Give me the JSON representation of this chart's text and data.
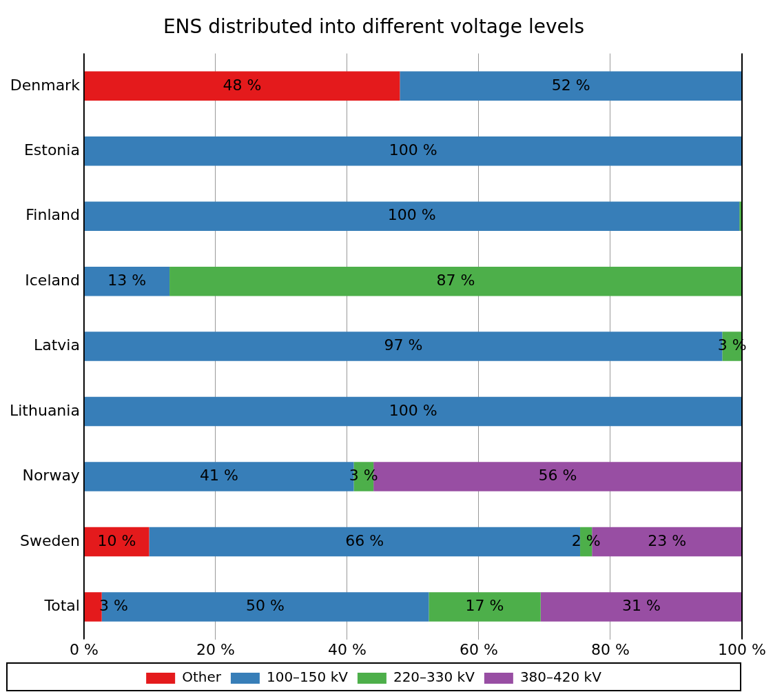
{
  "chart_data": {
    "type": "bar",
    "title": "ENS distributed into different voltage levels",
    "orientation": "horizontal",
    "stacked": true,
    "categories": [
      "Denmark",
      "Estonia",
      "Finland",
      "Iceland",
      "Latvia",
      "Lithuania",
      "Norway",
      "Sweden",
      "Total"
    ],
    "series": [
      {
        "name": "Other",
        "color": "#e41a1c",
        "values": [
          48,
          0,
          0,
          0,
          0,
          0,
          0,
          9.9,
          2.7
        ],
        "value_labels": [
          "48 %",
          null,
          null,
          null,
          null,
          null,
          null,
          "10 %",
          "3 %"
        ]
      },
      {
        "name": "100–150 kV",
        "color": "#377eb8",
        "values": [
          52,
          100,
          99.6,
          13,
          97,
          100,
          41,
          65.5,
          49.7
        ],
        "value_labels": [
          "52 %",
          "100 %",
          "100 %",
          "13 %",
          "97 %",
          "100 %",
          "41 %",
          "66 %",
          "50 %"
        ]
      },
      {
        "name": "220–330 kV",
        "color": "#4daf4a",
        "values": [
          0,
          0,
          0.4,
          87,
          3,
          0,
          3,
          1.8,
          17
        ],
        "value_labels": [
          null,
          null,
          null,
          "87 %",
          "3 %",
          null,
          "3 %",
          "2 %",
          "17 %"
        ]
      },
      {
        "name": "380–420 kV",
        "color": "#984ea3",
        "values": [
          0,
          0,
          0,
          0,
          0,
          0,
          56,
          22.8,
          30.6
        ],
        "value_labels": [
          null,
          null,
          null,
          null,
          null,
          null,
          "56 %",
          "23 %",
          "31 %"
        ]
      }
    ],
    "xlim": [
      0,
      100
    ],
    "xticks": [
      {
        "value": 0,
        "label": "0 %"
      },
      {
        "value": 20,
        "label": "20 %"
      },
      {
        "value": 40,
        "label": "40 %"
      },
      {
        "value": 60,
        "label": "60 %"
      },
      {
        "value": 80,
        "label": "80 %"
      },
      {
        "value": 100,
        "label": "100 %"
      }
    ],
    "grid": "x",
    "legend": "bottom"
  }
}
